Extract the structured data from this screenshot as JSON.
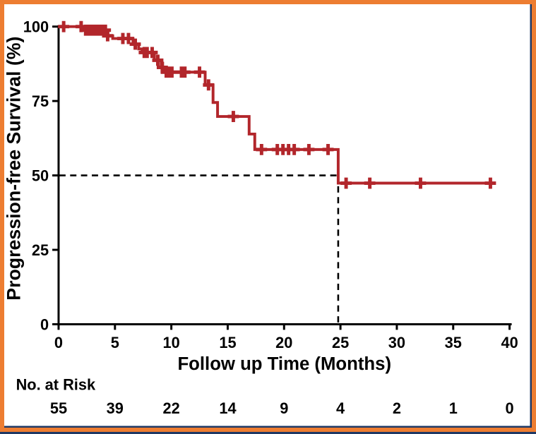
{
  "frame": {
    "outer_border_color": "#ED7D31",
    "inner_line_color": "#1F3864",
    "background": "#FFFFFF"
  },
  "chart_data": {
    "type": "line",
    "subtype": "kaplan-meier-step-curve",
    "title": "",
    "xlabel": "Follow up Time (Months)",
    "ylabel": "Progression-free Survival (%)",
    "xticks": [
      0,
      5,
      10,
      15,
      20,
      25,
      30,
      35,
      40
    ],
    "yticks": [
      0,
      25,
      50,
      75,
      100
    ],
    "xlim": [
      0,
      40
    ],
    "ylim": [
      0,
      100
    ],
    "grid": false,
    "curve_color": "#B2262B",
    "axis_color": "#000000",
    "dashed_line_color": "#000000",
    "series": [
      {
        "name": "Progression-free survival",
        "start": [
          0,
          100
        ],
        "drops": [
          [
            2.2,
            98.8
          ],
          [
            4.3,
            96.9
          ],
          [
            4.8,
            96.0
          ],
          [
            6.6,
            94.1
          ],
          [
            7.1,
            92.5
          ],
          [
            7.4,
            91.3
          ],
          [
            8.5,
            88.7
          ],
          [
            9.1,
            86.3
          ],
          [
            9.4,
            84.7
          ],
          [
            13.0,
            80.4
          ],
          [
            13.7,
            74.5
          ],
          [
            14.1,
            69.8
          ],
          [
            16.9,
            63.9
          ],
          [
            17.4,
            58.7
          ],
          [
            24.8,
            47.4
          ]
        ],
        "end_time": 38.7
      }
    ],
    "censor_marks": [
      [
        0.45,
        100
      ],
      [
        2.0,
        100
      ],
      [
        2.4,
        98.8
      ],
      [
        2.65,
        98.8
      ],
      [
        2.9,
        98.8
      ],
      [
        3.15,
        98.8
      ],
      [
        3.4,
        98.8
      ],
      [
        3.65,
        98.8
      ],
      [
        3.9,
        98.8
      ],
      [
        4.15,
        98.8
      ],
      [
        4.35,
        96.9
      ],
      [
        5.7,
        96.0
      ],
      [
        6.2,
        96.0
      ],
      [
        6.8,
        94.1
      ],
      [
        7.6,
        91.3
      ],
      [
        7.85,
        91.3
      ],
      [
        8.3,
        91.3
      ],
      [
        8.8,
        88.7
      ],
      [
        9.2,
        86.3
      ],
      [
        9.55,
        84.7
      ],
      [
        9.8,
        84.7
      ],
      [
        10.05,
        84.7
      ],
      [
        10.9,
        84.7
      ],
      [
        11.2,
        84.7
      ],
      [
        12.5,
        84.7
      ],
      [
        13.3,
        80.4
      ],
      [
        15.5,
        69.8
      ],
      [
        18.0,
        58.7
      ],
      [
        19.4,
        58.7
      ],
      [
        19.9,
        58.7
      ],
      [
        20.4,
        58.7
      ],
      [
        20.9,
        58.7
      ],
      [
        22.2,
        58.7
      ],
      [
        23.9,
        58.7
      ],
      [
        25.5,
        47.4
      ],
      [
        27.6,
        47.4
      ],
      [
        32.1,
        47.4
      ],
      [
        38.3,
        47.4
      ]
    ],
    "median_annotation": {
      "survival_pct": 50,
      "time_months": 24.8,
      "style": "dashed"
    },
    "at_risk": {
      "label": "No. at Risk",
      "times": [
        0,
        5,
        10,
        15,
        20,
        25,
        30,
        35,
        40
      ],
      "values": [
        55,
        39,
        22,
        14,
        9,
        4,
        2,
        1,
        0
      ]
    }
  }
}
